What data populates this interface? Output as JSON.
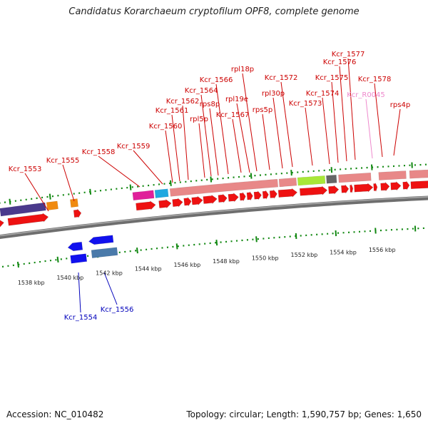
{
  "title": "Candidatus Korarchaeum cryptofilum OPF8, complete genome",
  "footer": {
    "accession": "Accession: NC_010482",
    "summary": "Topology: circular; Length: 1,590,757 bp; Genes: 1,650"
  },
  "colors": {
    "forward_gene": "#ee1111",
    "reverse_gene": "#1111ee",
    "forward_label": "#cc0000",
    "reverse_label": "#0000bb",
    "rna_label": "#ee88cc",
    "backbone": "#888888",
    "tick": "#118811"
  },
  "kbp_labels": [
    "1538 kbp",
    "1540 kbp",
    "1542 kbp",
    "1544 kbp",
    "1546 kbp",
    "1548 kbp",
    "1550 kbp",
    "1552 kbp",
    "1554 kbp",
    "1556 kbp"
  ],
  "forward_labels": [
    {
      "text": "Kcr_1553",
      "kind": "gene"
    },
    {
      "text": "Kcr_1555",
      "kind": "gene"
    },
    {
      "text": "Kcr_1558",
      "kind": "gene"
    },
    {
      "text": "Kcr_1559",
      "kind": "gene"
    },
    {
      "text": "Kcr_1560",
      "kind": "gene"
    },
    {
      "text": "Kcr_1561",
      "kind": "gene"
    },
    {
      "text": "Kcr_1562",
      "kind": "gene"
    },
    {
      "text": "rpl5p",
      "kind": "gene"
    },
    {
      "text": "Kcr_1564",
      "kind": "gene"
    },
    {
      "text": "rps8p",
      "kind": "gene"
    },
    {
      "text": "Kcr_1566",
      "kind": "gene"
    },
    {
      "text": "Kcr_1567",
      "kind": "gene"
    },
    {
      "text": "rpl19e",
      "kind": "gene"
    },
    {
      "text": "rpl18p",
      "kind": "gene"
    },
    {
      "text": "rps5p",
      "kind": "gene"
    },
    {
      "text": "rpl30p",
      "kind": "gene"
    },
    {
      "text": "Kcr_1572",
      "kind": "gene"
    },
    {
      "text": "Kcr_1573",
      "kind": "gene"
    },
    {
      "text": "Kcr_1574",
      "kind": "gene"
    },
    {
      "text": "Kcr_1575",
      "kind": "gene"
    },
    {
      "text": "Kcr_1576",
      "kind": "gene"
    },
    {
      "text": "Kcr_1577",
      "kind": "gene"
    },
    {
      "text": "Kcr_R0045",
      "kind": "rna"
    },
    {
      "text": "Kcr_1578",
      "kind": "gene"
    },
    {
      "text": "rps4p",
      "kind": "gene"
    }
  ],
  "reverse_labels": [
    {
      "text": "Kcr_1554"
    },
    {
      "text": "Kcr_1556"
    }
  ]
}
